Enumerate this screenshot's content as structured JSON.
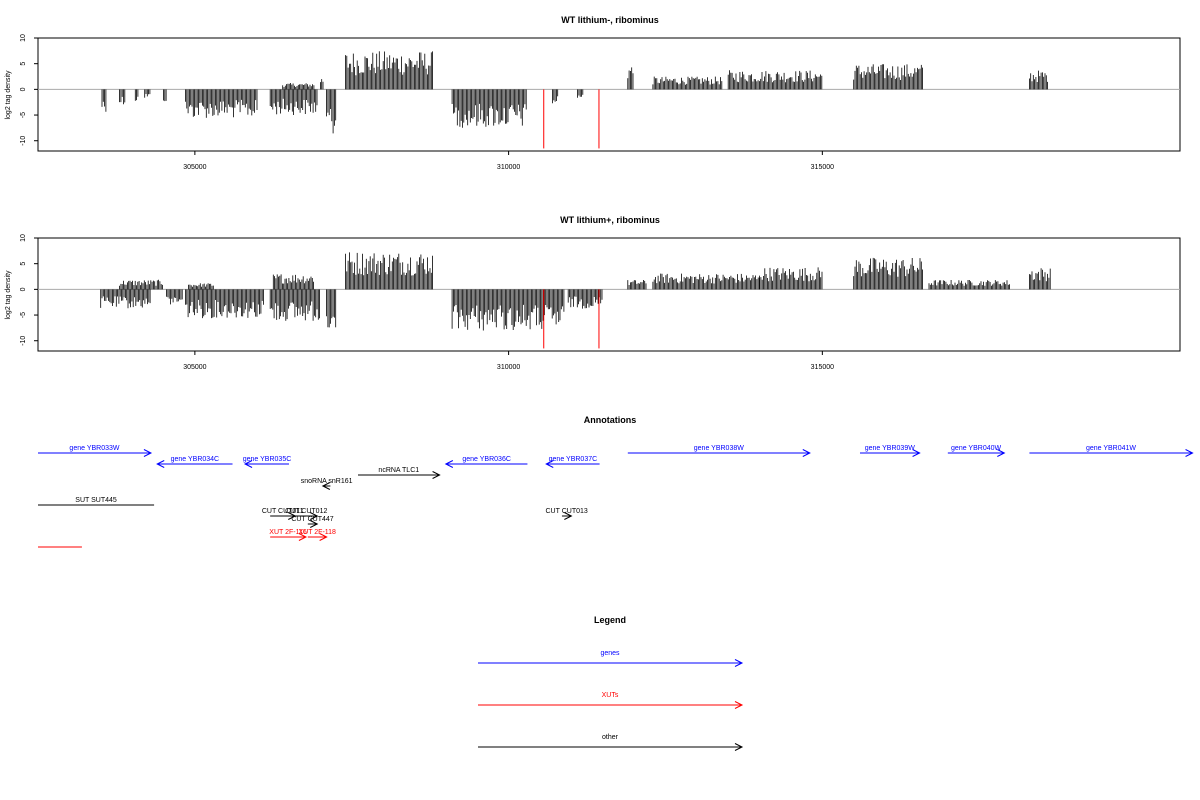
{
  "chart_data": [
    {
      "type": "bar",
      "title": "WT lithium-, ribominus",
      "ylabel": "log2 tag density",
      "xlabel": "",
      "xlim": [
        302500,
        320700
      ],
      "ylim": [
        -12,
        10
      ],
      "x_ticks": [
        305000,
        310000,
        315000
      ],
      "x_tick_labels": [
        "305000",
        "310000",
        "315000"
      ],
      "y_ticks": [
        -10,
        -5,
        0,
        5,
        10
      ],
      "y_tick_labels": [
        "-10",
        "-5",
        "0",
        "5",
        "10"
      ],
      "grid": false,
      "highlight_color": "#ff0000",
      "highlighted_x": [
        310560,
        311440
      ],
      "highlighted_values": [
        -11.5,
        -11.5
      ],
      "segments": [
        {
          "start": 303520,
          "end": 303600,
          "value": -3.5
        },
        {
          "start": 303800,
          "end": 303900,
          "value": -2.5
        },
        {
          "start": 304050,
          "end": 304100,
          "value": -2.0
        },
        {
          "start": 304200,
          "end": 304300,
          "value": -1.5
        },
        {
          "start": 304500,
          "end": 304560,
          "value": -2.0
        },
        {
          "start": 304850,
          "end": 306000,
          "value": -4.5
        },
        {
          "start": 306200,
          "end": 306950,
          "value": -4.0
        },
        {
          "start": 306400,
          "end": 306900,
          "value": 1.0
        },
        {
          "start": 307000,
          "end": 307050,
          "value": 2.0
        },
        {
          "start": 307100,
          "end": 307250,
          "value": -7.0
        },
        {
          "start": 307400,
          "end": 308800,
          "value": 6.0
        },
        {
          "start": 309100,
          "end": 310300,
          "value": -6.0
        },
        {
          "start": 310700,
          "end": 310800,
          "value": -2.5
        },
        {
          "start": 311100,
          "end": 311200,
          "value": -1.5
        },
        {
          "start": 311900,
          "end": 312000,
          "value": 4.0
        },
        {
          "start": 312300,
          "end": 313400,
          "value": 2.0
        },
        {
          "start": 313500,
          "end": 315000,
          "value": 3.0
        },
        {
          "start": 315500,
          "end": 316600,
          "value": 4.0
        },
        {
          "start": 318300,
          "end": 318600,
          "value": 3.0
        }
      ]
    },
    {
      "type": "bar",
      "title": "WT lithium+, ribominus",
      "ylabel": "log2 tag density",
      "xlabel": "",
      "xlim": [
        302500,
        320700
      ],
      "ylim": [
        -12,
        10
      ],
      "x_ticks": [
        305000,
        310000,
        315000
      ],
      "x_tick_labels": [
        "305000",
        "310000",
        "315000"
      ],
      "y_ticks": [
        -10,
        -5,
        0,
        5,
        10
      ],
      "y_tick_labels": [
        "-10",
        "-5",
        "0",
        "5",
        "10"
      ],
      "grid": false,
      "highlight_color": "#ff0000",
      "highlighted_x": [
        310560,
        311440
      ],
      "highlighted_values": [
        -11.5,
        -11.5
      ],
      "segments": [
        {
          "start": 303500,
          "end": 304300,
          "value": -3.0
        },
        {
          "start": 303800,
          "end": 304500,
          "value": 1.5
        },
        {
          "start": 304550,
          "end": 304800,
          "value": -2.5
        },
        {
          "start": 304850,
          "end": 306100,
          "value": -4.5
        },
        {
          "start": 304900,
          "end": 305300,
          "value": 1.0
        },
        {
          "start": 306200,
          "end": 307000,
          "value": -5.0
        },
        {
          "start": 306250,
          "end": 306900,
          "value": 2.5
        },
        {
          "start": 307100,
          "end": 307250,
          "value": -8.0
        },
        {
          "start": 307400,
          "end": 308800,
          "value": 6.0
        },
        {
          "start": 309100,
          "end": 310900,
          "value": -6.5
        },
        {
          "start": 310950,
          "end": 311500,
          "value": -3.0
        },
        {
          "start": 311900,
          "end": 312200,
          "value": 1.5
        },
        {
          "start": 312300,
          "end": 314000,
          "value": 2.5
        },
        {
          "start": 314000,
          "end": 315000,
          "value": 3.5
        },
        {
          "start": 315500,
          "end": 316600,
          "value": 5.0
        },
        {
          "start": 316700,
          "end": 318000,
          "value": 1.5
        },
        {
          "start": 318300,
          "end": 318650,
          "value": 3.5
        }
      ]
    }
  ],
  "annotations": {
    "title": "Annotations",
    "items": [
      {
        "label": "gene YBR033W",
        "color": "#0000ff",
        "x1": 302500,
        "x2": 304300,
        "lane": 0,
        "dir": 1
      },
      {
        "label": "gene YBR034C",
        "color": "#0000ff",
        "x1": 304400,
        "x2": 305600,
        "lane": 1,
        "dir": -1
      },
      {
        "label": "gene YBR035C",
        "color": "#0000ff",
        "x1": 305800,
        "x2": 306500,
        "lane": 1,
        "dir": -1
      },
      {
        "label": "gene YBR036C",
        "color": "#0000ff",
        "x1": 309000,
        "x2": 310300,
        "lane": 1,
        "dir": -1
      },
      {
        "label": "gene YBR037C",
        "color": "#0000ff",
        "x1": 310600,
        "x2": 311450,
        "lane": 1,
        "dir": -1
      },
      {
        "label": "gene YBR038W",
        "color": "#0000ff",
        "x1": 311900,
        "x2": 314800,
        "lane": 0,
        "dir": 1
      },
      {
        "label": "gene YBR039W",
        "color": "#0000ff",
        "x1": 315600,
        "x2": 316550,
        "lane": 0,
        "dir": 1
      },
      {
        "label": "gene YBR040W",
        "color": "#0000ff",
        "x1": 317000,
        "x2": 317900,
        "lane": 0,
        "dir": 1
      },
      {
        "label": "gene YBR041W",
        "color": "#0000ff",
        "x1": 318300,
        "x2": 320900,
        "lane": 0,
        "dir": 1
      },
      {
        "label": "ncRNA TLC1",
        "color": "#000000",
        "x1": 307600,
        "x2": 308900,
        "lane": 2,
        "dir": 1
      },
      {
        "label": "snoRNA snR161",
        "color": "#000000",
        "x1": 307040,
        "x2": 307160,
        "lane": 3,
        "dir": -1
      },
      {
        "label": "SUT SUT445",
        "color": "#000000",
        "x1": 302500,
        "x2": 304350,
        "lane": 4,
        "dir": 0
      },
      {
        "label": "CUT CUT011",
        "color": "#000000",
        "x1": 306200,
        "x2": 306600,
        "lane": 5,
        "dir": 1
      },
      {
        "label": "CUT CUT012",
        "color": "#000000",
        "x1": 306600,
        "x2": 306950,
        "lane": 5,
        "dir": 1
      },
      {
        "label": "CUT CUT447",
        "color": "#000000",
        "x1": 306800,
        "x2": 306950,
        "lane": 6,
        "dir": 1
      },
      {
        "label": "CUT CUT013",
        "color": "#000000",
        "x1": 310850,
        "x2": 311000,
        "lane": 5,
        "dir": 1
      },
      {
        "label": "XUT 2F-116",
        "color": "#ff0000",
        "x1": 306200,
        "x2": 306770,
        "lane": 7,
        "dir": 1
      },
      {
        "label": "XUT 2F-118",
        "color": "#ff0000",
        "x1": 306800,
        "x2": 307100,
        "lane": 7,
        "dir": 1
      },
      {
        "label": "",
        "color": "#ff0000",
        "x1": 302500,
        "x2": 303200,
        "lane": 8,
        "dir": 0
      }
    ]
  },
  "legend": {
    "title": "Legend",
    "items": [
      {
        "label": "genes",
        "color": "#0000ff"
      },
      {
        "label": "XUTs",
        "color": "#ff0000"
      },
      {
        "label": "other",
        "color": "#000000"
      }
    ]
  }
}
